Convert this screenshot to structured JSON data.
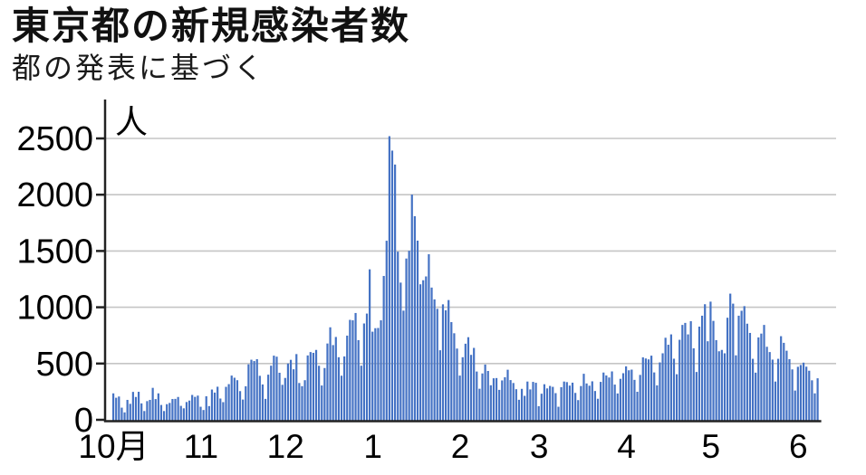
{
  "page": {
    "background": "#ffffff"
  },
  "chart_data": {
    "type": "bar",
    "title": "東京都の新規感染者数",
    "subtitle": "都の発表に基づく",
    "unit_label": "人",
    "bar_color": "#4472c4",
    "grid_color": "#c5c5c5",
    "axis_color": "#222222",
    "text_color": "#000000",
    "y_ticks": [
      0,
      500,
      1000,
      1500,
      2000,
      2500
    ],
    "ylim": [
      0,
      2500
    ],
    "grid": "horizontal",
    "legend_position": "none",
    "x_tick_labels": [
      "10月",
      "11",
      "12",
      "1",
      "2",
      "3",
      "4",
      "5",
      "6"
    ],
    "months": [
      {
        "label": "10月",
        "values": [
          235,
          196,
          207,
          108,
          66,
          177,
          142,
          248,
          203,
          249,
          146,
          78,
          166,
          177,
          284,
          184,
          235,
          132,
          78,
          139,
          150,
          185,
          186,
          203,
          124,
          102,
          158,
          171,
          221,
          204,
          215
        ]
      },
      {
        "label": "11",
        "values": [
          116,
          87,
          209,
          122,
          269,
          242,
          294,
          189,
          157,
          293,
          317,
          393,
          374,
          352,
          255,
          180,
          298,
          493,
          534,
          522,
          539,
          391,
          314,
          186,
          401,
          481,
          570,
          561,
          418,
          311
        ]
      },
      {
        "label": "12",
        "values": [
          372,
          500,
          533,
          449,
          584,
          327,
          299,
          352,
          572,
          602,
          595,
          621,
          480,
          305,
          460,
          678,
          822,
          664,
          736,
          556,
          392,
          563,
          748,
          888,
          884,
          949,
          708,
          481,
          856,
          944,
          1337
        ]
      },
      {
        "label": "1",
        "values": [
          783,
          814,
          816,
          884,
          1278,
          1591,
          2520,
          2392,
          2268,
          1494,
          1219,
          970,
          1433,
          1502,
          2001,
          1809,
          1592,
          1204,
          1240,
          1274,
          1471,
          1175,
          1070,
          986,
          618,
          1026,
          973,
          1064,
          868,
          769,
          633
        ]
      },
      {
        "label": "2",
        "values": [
          393,
          556,
          676,
          734,
          577,
          639,
          429,
          276,
          412,
          491,
          434,
          307,
          369,
          371,
          266,
          350,
          378,
          445,
          353,
          327,
          272,
          178,
          275,
          213,
          340,
          270,
          337,
          329
        ]
      },
      {
        "label": "3",
        "values": [
          121,
          232,
          316,
          279,
          301,
          293,
          237,
          116,
          290,
          340,
          335,
          304,
          330,
          239,
          175,
          300,
          409,
          323,
          303,
          342,
          256,
          187,
          337,
          420,
          394,
          376,
          430,
          313,
          234,
          364,
          414
        ]
      },
      {
        "label": "4",
        "values": [
          475,
          440,
          446,
          355,
          249,
          399,
          555,
          545,
          537,
          570,
          421,
          306,
          510,
          591,
          729,
          667,
          759,
          543,
          405,
          711,
          843,
          861,
          759,
          876,
          635,
          425,
          828,
          925,
          1027,
          698
        ]
      },
      {
        "label": "5",
        "values": [
          1050,
          879,
          708,
          609,
          621,
          591,
          907,
          1121,
          1032,
          573,
          925,
          969,
          1010,
          854,
          772,
          542,
          419,
          732,
          766,
          843,
          649,
          602,
          535,
          340,
          542,
          743,
          684,
          614,
          539,
          448,
          260
        ]
      },
      {
        "label": "6",
        "values": [
          471,
          487,
          508,
          472,
          436,
          351,
          235,
          369
        ]
      }
    ]
  }
}
